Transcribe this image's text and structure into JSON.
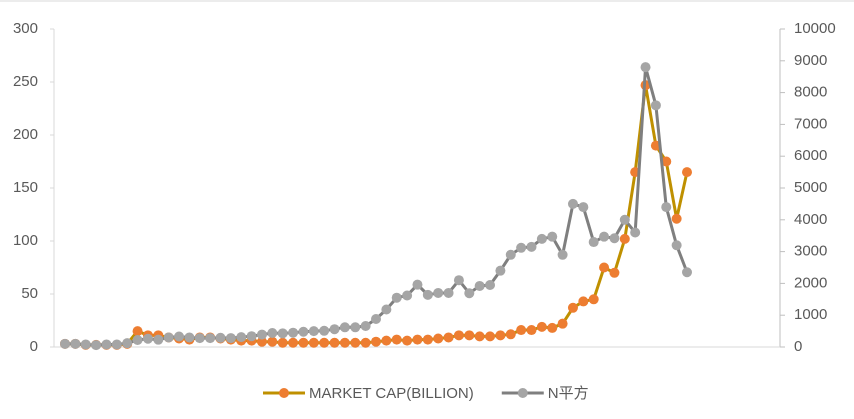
{
  "chart_data": {
    "type": "line",
    "categories": [
      null,
      null,
      null,
      null,
      null,
      null,
      null,
      null,
      null,
      null,
      null,
      null,
      null,
      null,
      null,
      null,
      null,
      null,
      null,
      null,
      null,
      null,
      null,
      null,
      null,
      null,
      null,
      null,
      null,
      null,
      null,
      null,
      null,
      null,
      null,
      null,
      null,
      null,
      null,
      null,
      null,
      null,
      null,
      null,
      null,
      null,
      null,
      null,
      null,
      null,
      null,
      null,
      null,
      null,
      null,
      null,
      null,
      null,
      null,
      null,
      null
    ],
    "series": [
      {
        "name": "MARKET CAP(BILLION)",
        "color": "#bf9000",
        "marker_color": "#ed7d31",
        "values": [
          3,
          3,
          2,
          2,
          2,
          2,
          3,
          15,
          11,
          11,
          9,
          8,
          7,
          9,
          9,
          8,
          7,
          6,
          6,
          5,
          5,
          4,
          4,
          4,
          4,
          4,
          4,
          4,
          4,
          4,
          5,
          6,
          7,
          6,
          7,
          7,
          8,
          9,
          11,
          11,
          10,
          10,
          11,
          12,
          16,
          16,
          19,
          18,
          22,
          37,
          43,
          45,
          75,
          70,
          102,
          165,
          247,
          190,
          175,
          121,
          165
        ]
      },
      {
        "name": "N平方",
        "color": "#7f7f7f",
        "marker_color": "#a5a5a5",
        "axis": "y2",
        "values": [
          100,
          100,
          80,
          60,
          80,
          80,
          120,
          220,
          260,
          230,
          300,
          330,
          300,
          280,
          280,
          290,
          280,
          310,
          340,
          390,
          440,
          430,
          450,
          480,
          500,
          510,
          560,
          620,
          620,
          660,
          880,
          1180,
          1550,
          1620,
          1960,
          1640,
          1700,
          1700,
          2100,
          1690,
          1920,
          1950,
          2400,
          2900,
          3120,
          3150,
          3400,
          3470,
          2900,
          4500,
          4400,
          3300,
          3470,
          3420,
          4000,
          3600,
          8800,
          7600,
          4400,
          3200,
          2350
        ]
      }
    ],
    "ylim": [
      0,
      300
    ],
    "yticks": [
      0,
      50,
      100,
      150,
      200,
      250,
      300
    ],
    "y2lim": [
      0,
      10000
    ],
    "y2ticks": [
      0,
      1000,
      2000,
      3000,
      4000,
      5000,
      6000,
      7000,
      8000,
      9000,
      10000
    ]
  }
}
